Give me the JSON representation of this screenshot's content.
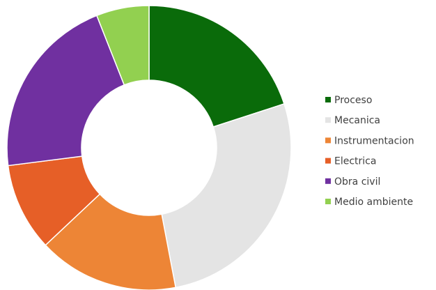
{
  "chart_data": {
    "type": "donut",
    "categories": [
      "Proceso",
      "Mecanica",
      "Instrumentacion",
      "Electrica",
      "Obra civil",
      "Medio ambiente"
    ],
    "values": [
      20,
      27,
      16,
      10,
      21,
      6
    ],
    "colors": [
      "#0a6b0a",
      "#e4e4e4",
      "#ed8536",
      "#e65f27",
      "#7030a0",
      "#92d050"
    ],
    "legend": "right"
  }
}
